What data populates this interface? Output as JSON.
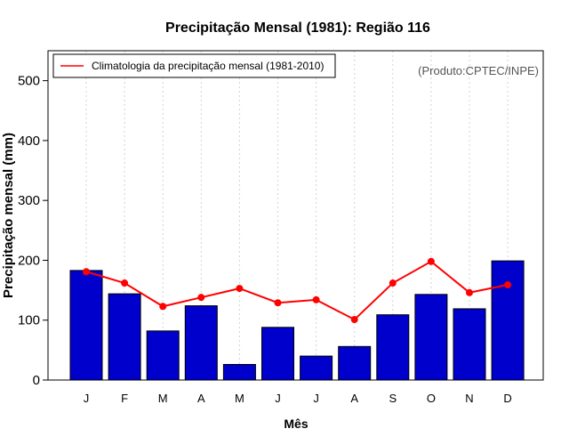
{
  "chart_data": {
    "type": "bar",
    "title": "Precipitação Mensal (1981): Região 116",
    "xlabel": "Mês",
    "ylabel": "Precipitação mensal (mm)",
    "categories": [
      "J",
      "F",
      "M",
      "A",
      "M",
      "J",
      "J",
      "A",
      "S",
      "O",
      "N",
      "D"
    ],
    "ylim": [
      0,
      550
    ],
    "yticks": [
      0,
      100,
      200,
      300,
      400,
      500
    ],
    "grid": "vertical dotted",
    "series": [
      {
        "name": "Precipitação mensal (1981)",
        "type": "bar",
        "color": "#0000CD",
        "values": [
          183,
          144,
          82,
          124,
          26,
          88,
          40,
          56,
          109,
          143,
          119,
          199
        ]
      },
      {
        "name": "Climatologia da precipitação mensal (1981-2010)",
        "type": "line",
        "color": "#FF0000",
        "values": [
          181,
          162,
          123,
          138,
          153,
          129,
          134,
          101,
          162,
          198,
          146,
          159
        ]
      }
    ],
    "legend": {
      "position": "top-left",
      "entries": [
        "Climatologia da precipitação mensal (1981-2010)"
      ]
    },
    "annotations": [
      "(Produto:CPTEC/INPE)"
    ]
  }
}
